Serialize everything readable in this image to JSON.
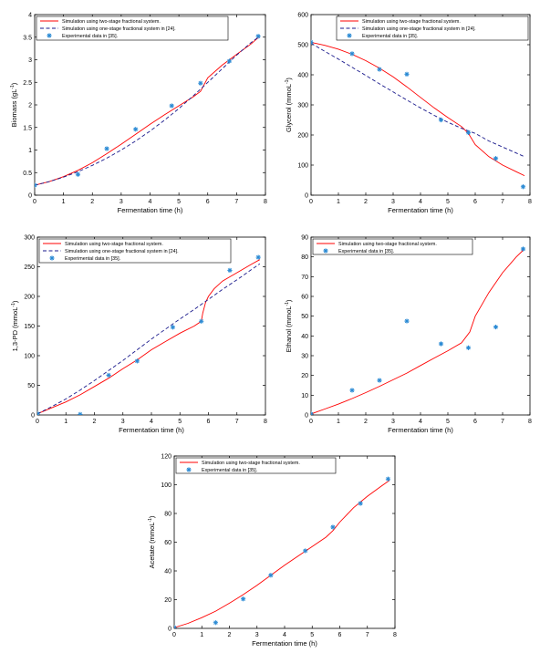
{
  "colors": {
    "two_stage": "#ff0000",
    "one_stage": "#1a1a8c",
    "experimental": "#2a8ad4",
    "axis": "#000000"
  },
  "legend_labels": {
    "two_stage": "Simulation using two-stage fractional system.",
    "one_stage": "Simulation using one-stage fractional system in [24].",
    "experimental": "Experimental data in [35]."
  },
  "chart_data": [
    {
      "id": "biomass",
      "type": "line",
      "xlabel": "Fermentation time (h)",
      "ylabel": "Biomass (gL",
      "ylabel_sup": "-1",
      "ylabel_tail": ")",
      "xlim": [
        0,
        8
      ],
      "ylim": [
        0,
        4
      ],
      "xticks": [
        0,
        1,
        2,
        3,
        4,
        5,
        6,
        7,
        8
      ],
      "yticks": [
        0,
        0.5,
        1,
        1.5,
        2,
        2.5,
        3,
        3.5,
        4
      ],
      "ytick_labels": [
        "0",
        "0.5",
        "1",
        "1.5",
        "2",
        "2.5",
        "3",
        "3.5",
        "4"
      ],
      "legend_position": "top-left",
      "series": [
        {
          "key": "two_stage",
          "style": "solid-line",
          "x": [
            0,
            0.5,
            1,
            1.5,
            2,
            2.5,
            3,
            3.5,
            4,
            4.5,
            5,
            5.5,
            5.75,
            6,
            6.5,
            7,
            7.5,
            7.8
          ],
          "y": [
            0.22,
            0.3,
            0.41,
            0.55,
            0.72,
            0.92,
            1.13,
            1.35,
            1.57,
            1.78,
            1.98,
            2.18,
            2.3,
            2.6,
            2.88,
            3.12,
            3.35,
            3.52
          ]
        },
        {
          "key": "one_stage",
          "style": "dashed-line",
          "x": [
            0,
            0.5,
            1,
            1.5,
            2,
            2.5,
            3,
            3.5,
            4,
            4.5,
            5,
            5.5,
            6,
            6.5,
            7,
            7.5,
            7.8
          ],
          "y": [
            0.22,
            0.3,
            0.4,
            0.52,
            0.66,
            0.82,
            1.0,
            1.2,
            1.42,
            1.66,
            1.92,
            2.2,
            2.5,
            2.8,
            3.1,
            3.38,
            3.52
          ]
        },
        {
          "key": "experimental",
          "style": "marker",
          "x": [
            0,
            1.5,
            2.5,
            3.5,
            4.75,
            5.75,
            6.75,
            7.75
          ],
          "y": [
            0.22,
            0.46,
            1.03,
            1.46,
            1.98,
            2.48,
            2.97,
            3.52
          ]
        }
      ]
    },
    {
      "id": "glycerol",
      "type": "line",
      "xlabel": "Fermentation time (h)",
      "ylabel": "Glycerol (mmoL",
      "ylabel_sup": "-1",
      "ylabel_tail": ")",
      "xlim": [
        0,
        8
      ],
      "ylim": [
        0,
        600
      ],
      "xticks": [
        0,
        1,
        2,
        3,
        4,
        5,
        6,
        7,
        8
      ],
      "yticks": [
        0,
        100,
        200,
        300,
        400,
        500,
        600
      ],
      "ytick_labels": [
        "0",
        "100",
        "200",
        "300",
        "400",
        "500",
        "600"
      ],
      "legend_position": "top-right",
      "series": [
        {
          "key": "two_stage",
          "style": "solid-line",
          "x": [
            0,
            0.5,
            1,
            1.5,
            2,
            2.5,
            3,
            3.5,
            4,
            4.5,
            5,
            5.5,
            5.75,
            6,
            6.5,
            7,
            7.5,
            7.8
          ],
          "y": [
            508,
            498,
            485,
            468,
            447,
            422,
            393,
            360,
            325,
            290,
            258,
            228,
            205,
            168,
            128,
            100,
            78,
            65
          ]
        },
        {
          "key": "one_stage",
          "style": "dashed-line",
          "x": [
            0,
            0.5,
            1,
            1.5,
            2,
            2.5,
            3,
            3.5,
            4,
            4.5,
            5,
            5.5,
            6,
            6.5,
            7,
            7.5,
            7.8
          ],
          "y": [
            505,
            478,
            452,
            425,
            398,
            370,
            343,
            316,
            290,
            265,
            242,
            222,
            205,
            180,
            160,
            140,
            128
          ]
        },
        {
          "key": "experimental",
          "style": "marker",
          "x": [
            0,
            1.5,
            2.5,
            3.5,
            4.75,
            5.75,
            6.75,
            7.75
          ],
          "y": [
            508,
            470,
            418,
            402,
            250,
            208,
            122,
            28
          ]
        }
      ]
    },
    {
      "id": "pd13",
      "type": "line",
      "xlabel": "Fermentation time (h)",
      "ylabel": "1,3-PD (mmoL",
      "ylabel_sup": "-1",
      "ylabel_tail": ")",
      "xlim": [
        0,
        8
      ],
      "ylim": [
        0,
        300
      ],
      "xticks": [
        0,
        1,
        2,
        3,
        4,
        5,
        6,
        7,
        8
      ],
      "yticks": [
        0,
        50,
        100,
        150,
        200,
        250,
        300
      ],
      "ytick_labels": [
        "0",
        "50",
        "100",
        "150",
        "200",
        "250",
        "300"
      ],
      "legend_position": "top-left",
      "series": [
        {
          "key": "two_stage",
          "style": "solid-line",
          "x": [
            0,
            0.5,
            1,
            1.5,
            2,
            2.5,
            3,
            3.5,
            4,
            4.5,
            5,
            5.5,
            5.75,
            5.8,
            5.9,
            6,
            6.2,
            6.5,
            7,
            7.5,
            7.8
          ],
          "y": [
            2,
            12,
            22,
            34,
            48,
            62,
            78,
            93,
            110,
            124,
            138,
            150,
            158,
            172,
            190,
            200,
            213,
            226,
            240,
            254,
            262
          ]
        },
        {
          "key": "one_stage",
          "style": "dashed-line",
          "x": [
            0,
            0.5,
            1,
            1.5,
            2,
            2.5,
            3,
            3.5,
            4,
            4.5,
            5,
            5.5,
            6,
            6.5,
            7,
            7.5,
            7.8
          ],
          "y": [
            2,
            14,
            27,
            42,
            58,
            75,
            92,
            110,
            128,
            145,
            162,
            178,
            195,
            212,
            228,
            245,
            255
          ]
        },
        {
          "key": "experimental",
          "style": "marker",
          "x": [
            0,
            1.5,
            2.5,
            3.5,
            4.75,
            5.75,
            6.75,
            7.75
          ],
          "y": [
            2,
            1,
            67,
            91,
            148,
            158,
            244,
            266
          ]
        }
      ]
    },
    {
      "id": "ethanol",
      "type": "line",
      "xlabel": "Fermentation time (h)",
      "ylabel": "Ethanol (mmoL",
      "ylabel_sup": "-1",
      "ylabel_tail": ")",
      "xlim": [
        0,
        8
      ],
      "ylim": [
        0,
        90
      ],
      "xticks": [
        0,
        1,
        2,
        3,
        4,
        5,
        6,
        7,
        8
      ],
      "yticks": [
        0,
        10,
        20,
        30,
        40,
        50,
        60,
        70,
        80,
        90
      ],
      "ytick_labels": [
        "0",
        "10",
        "20",
        "30",
        "40",
        "50",
        "60",
        "70",
        "80",
        "90"
      ],
      "legend_position": "top-left",
      "series": [
        {
          "key": "two_stage",
          "style": "solid-line",
          "x": [
            0,
            0.5,
            1,
            1.5,
            2,
            2.5,
            3,
            3.5,
            4,
            4.5,
            5,
            5.5,
            5.8,
            6,
            6.5,
            7,
            7.5,
            7.8
          ],
          "y": [
            0.5,
            3,
            5.5,
            8.3,
            11.3,
            14.5,
            17.8,
            21.2,
            25,
            28.8,
            32.5,
            36.5,
            42,
            50,
            62,
            72,
            80,
            84
          ]
        },
        {
          "key": "experimental",
          "style": "marker",
          "x": [
            0,
            1.5,
            2.5,
            3.5,
            4.75,
            5.75,
            6.75,
            7.75
          ],
          "y": [
            0.5,
            12.5,
            17.5,
            47.5,
            36,
            34,
            44.5,
            84
          ]
        }
      ]
    },
    {
      "id": "acetate",
      "type": "line",
      "xlabel": "Fermentation time (h)",
      "ylabel": "Acetate (mmoL",
      "ylabel_sup": "-1",
      "ylabel_tail": ")",
      "xlim": [
        0,
        8
      ],
      "ylim": [
        0,
        120
      ],
      "xticks": [
        0,
        1,
        2,
        3,
        4,
        5,
        6,
        7,
        8
      ],
      "yticks": [
        0,
        20,
        40,
        60,
        80,
        100,
        120
      ],
      "ytick_labels": [
        "0",
        "20",
        "40",
        "60",
        "80",
        "100",
        "120"
      ],
      "legend_position": "top-left",
      "series": [
        {
          "key": "two_stage",
          "style": "solid-line",
          "x": [
            0,
            0.5,
            1,
            1.5,
            2,
            2.5,
            3,
            3.5,
            4,
            4.5,
            5,
            5.5,
            5.75,
            6,
            6.5,
            7,
            7.5,
            7.8
          ],
          "y": [
            0.5,
            3.5,
            7.5,
            12,
            17.5,
            23.5,
            30,
            37,
            44,
            50.5,
            57,
            63.5,
            68,
            74,
            84,
            92,
            99,
            103
          ]
        },
        {
          "key": "experimental",
          "style": "marker",
          "x": [
            0,
            1.5,
            2.5,
            3.5,
            4.75,
            5.75,
            6.75,
            7.75
          ],
          "y": [
            0.5,
            4,
            20.5,
            37,
            54,
            70.5,
            87,
            104
          ]
        }
      ]
    }
  ]
}
